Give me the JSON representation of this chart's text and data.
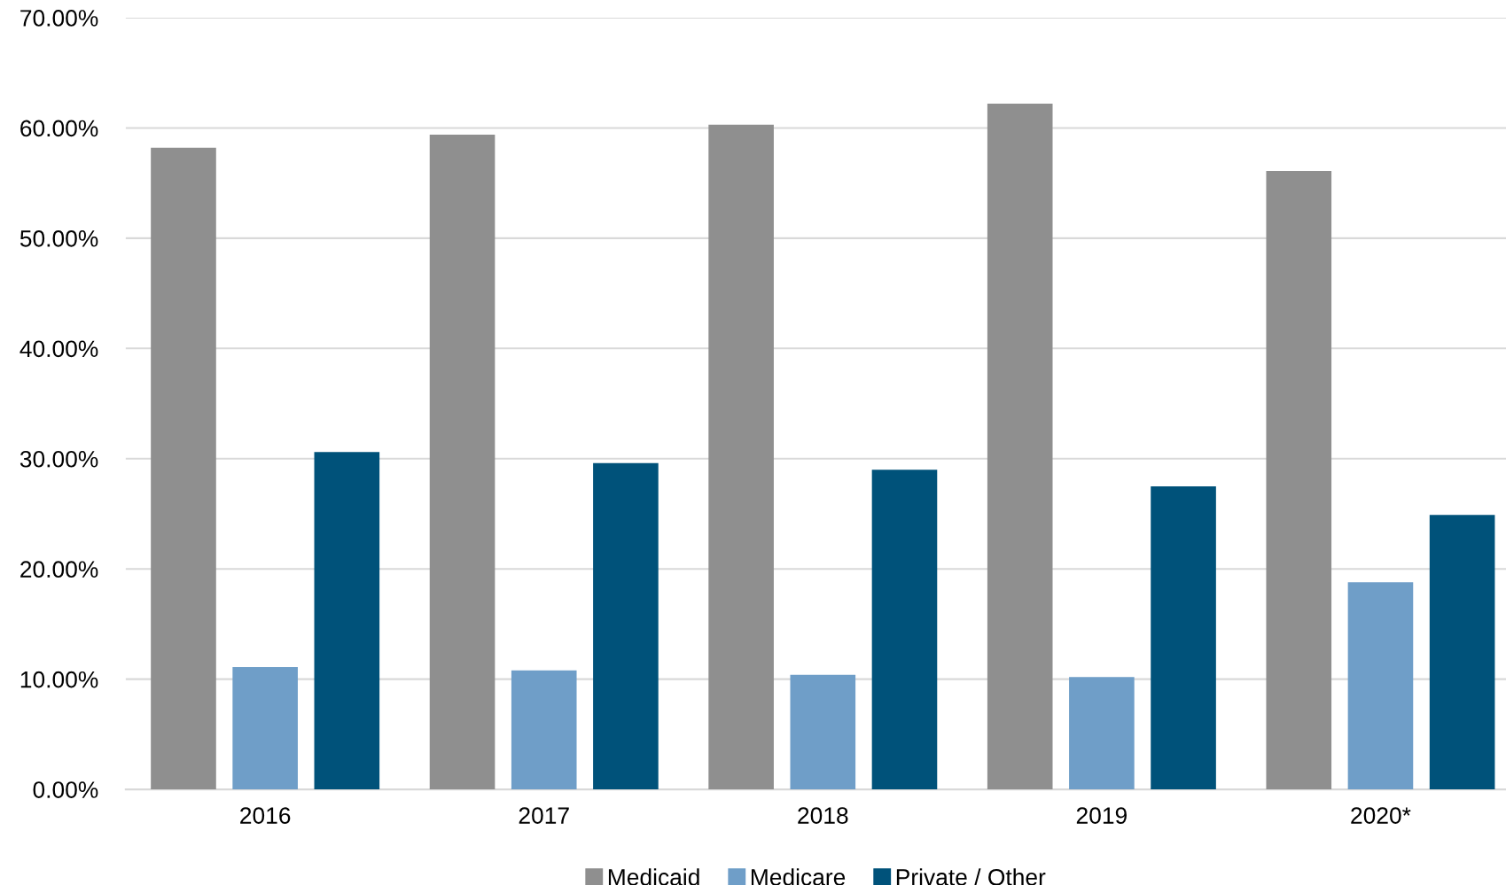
{
  "chart_data": {
    "type": "bar",
    "categories": [
      "2016",
      "2017",
      "2018",
      "2019",
      "2020*"
    ],
    "series": [
      {
        "name": "Medicaid",
        "color": "#8f8f8f",
        "values": [
          58.2,
          59.4,
          60.3,
          62.2,
          56.1
        ]
      },
      {
        "name": "Medicare",
        "color": "#6f9ec8",
        "values": [
          11.1,
          10.8,
          10.4,
          10.2,
          18.8
        ]
      },
      {
        "name": "Private / Other",
        "color": "#00527a",
        "values": [
          30.6,
          29.6,
          29.0,
          27.5,
          24.9
        ]
      }
    ],
    "ylim": [
      0,
      70
    ],
    "yticks": [
      {
        "value": 0,
        "label": "0.00%"
      },
      {
        "value": 10,
        "label": "10.00%"
      },
      {
        "value": 20,
        "label": "20.00%"
      },
      {
        "value": 30,
        "label": "30.00%"
      },
      {
        "value": 40,
        "label": "40.00%"
      },
      {
        "value": 50,
        "label": "50.00%"
      },
      {
        "value": 60,
        "label": "60.00%"
      },
      {
        "value": 70,
        "label": "70.00%"
      }
    ],
    "grid": "y",
    "legend": "bottom"
  }
}
